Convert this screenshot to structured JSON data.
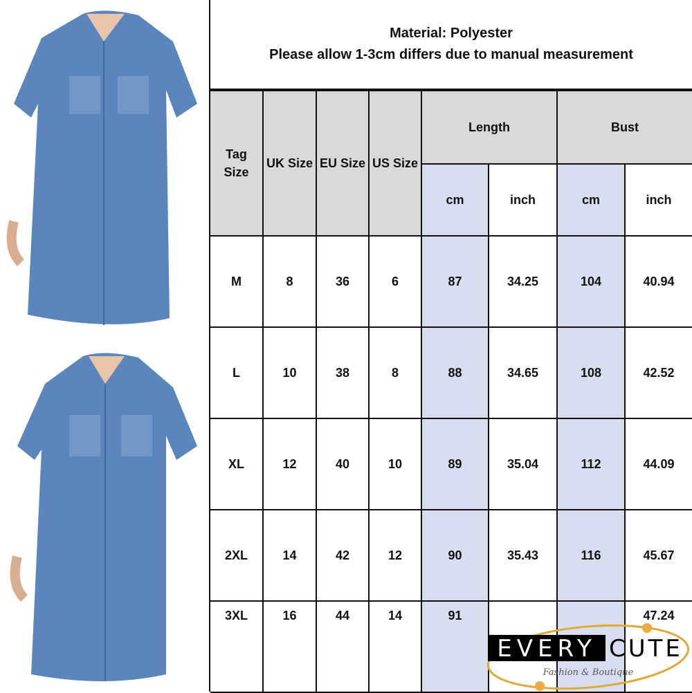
{
  "header": {
    "material": "Material: Polyester",
    "note": "Please allow 1-3cm differs due to manual measurement"
  },
  "table": {
    "columns": {
      "tag_size": "Tag Size",
      "uk_size": "UK Size",
      "eu_size": "EU Size",
      "us_size": "US Size",
      "length": "Length",
      "bust": "Bust",
      "cm": "cm",
      "inch": "inch"
    },
    "rows": [
      [
        "M",
        "8",
        "36",
        "6",
        "87",
        "34.25",
        "104",
        "40.94"
      ],
      [
        "L",
        "10",
        "38",
        "8",
        "88",
        "34.65",
        "108",
        "42.52"
      ],
      [
        "XL",
        "12",
        "40",
        "10",
        "89",
        "35.04",
        "112",
        "44.09"
      ],
      [
        "2XL",
        "14",
        "42",
        "12",
        "90",
        "35.43",
        "116",
        "45.67"
      ],
      [
        "3XL",
        "16",
        "44",
        "14",
        "91",
        "",
        "",
        "47.24"
      ]
    ]
  },
  "logo": {
    "brand": "EVERYCUTE",
    "word1": "EVERY",
    "word2": "CUTE",
    "tagline": "Fashion & Boutique"
  },
  "colors": {
    "header_gray": "#d9d9d9",
    "cm_column_blue": "#d8deef",
    "denim": "#5a86bd",
    "logo_gold": "#e0a935"
  },
  "images": [
    "denim-shirt-dress-front",
    "denim-shirt-dress-front"
  ]
}
